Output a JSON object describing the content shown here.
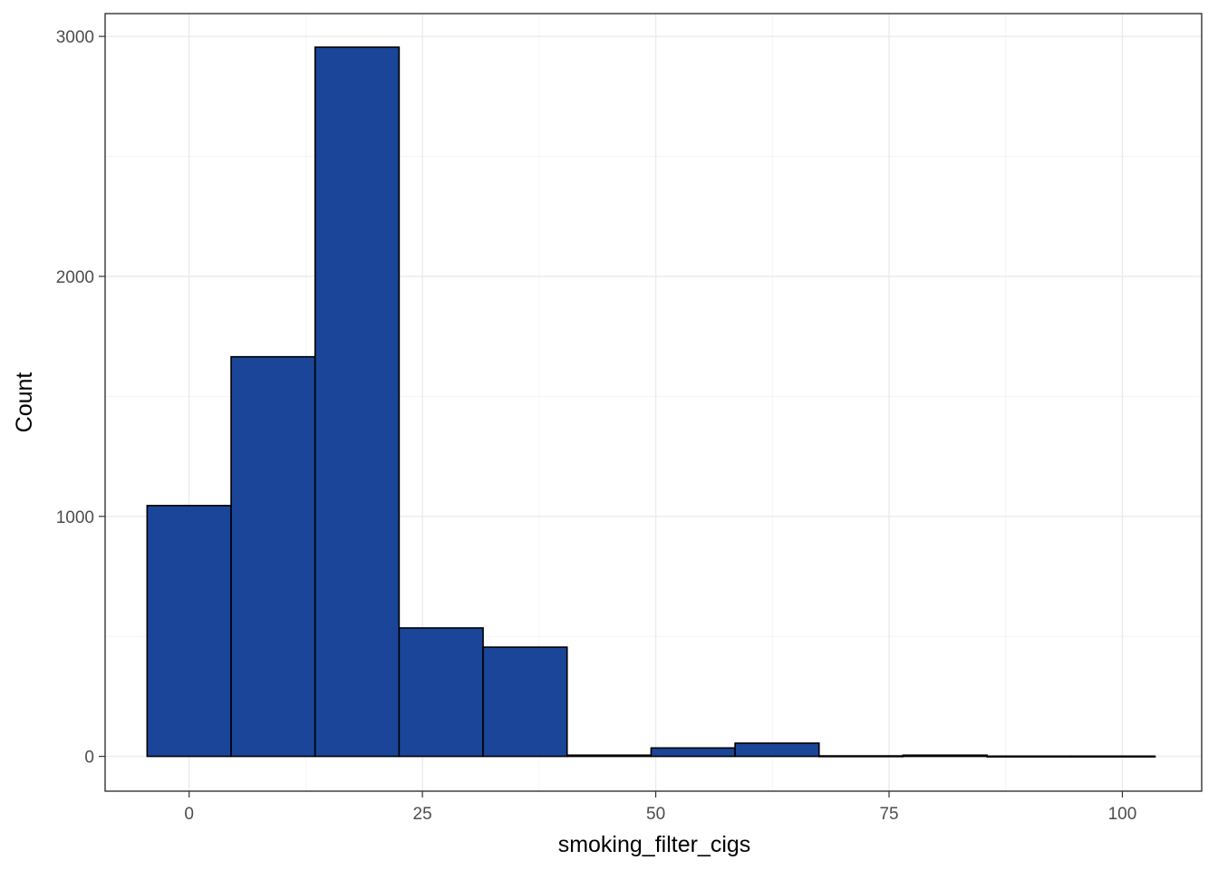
{
  "chart_data": {
    "type": "bar",
    "subtype": "histogram",
    "xlabel": "smoking_filter_cigs",
    "ylabel": "Count",
    "xlim": [
      -9,
      108.5
    ],
    "ylim": [
      -145,
      3095
    ],
    "x_ticks": [
      0,
      25,
      50,
      75,
      100
    ],
    "y_ticks": [
      0,
      1000,
      2000,
      3000
    ],
    "x_minor_ticks": [
      -12.5,
      12.5,
      37.5,
      62.5,
      87.5
    ],
    "y_minor_ticks": [
      500,
      1500,
      2500
    ],
    "bins": [
      {
        "x0": -4.5,
        "x1": 4.5,
        "count": 1045
      },
      {
        "x0": 4.5,
        "x1": 13.5,
        "count": 1665
      },
      {
        "x0": 13.5,
        "x1": 22.5,
        "count": 2955
      },
      {
        "x0": 22.5,
        "x1": 31.5,
        "count": 535
      },
      {
        "x0": 31.5,
        "x1": 40.5,
        "count": 455
      },
      {
        "x0": 40.5,
        "x1": 49.5,
        "count": 5
      },
      {
        "x0": 49.5,
        "x1": 58.5,
        "count": 35
      },
      {
        "x0": 58.5,
        "x1": 67.5,
        "count": 55
      },
      {
        "x0": 67.5,
        "x1": 76.5,
        "count": 2
      },
      {
        "x0": 76.5,
        "x1": 85.5,
        "count": 5
      },
      {
        "x0": 85.5,
        "x1": 94.5,
        "count": 1
      },
      {
        "x0": 94.5,
        "x1": 103.5,
        "count": 1
      }
    ],
    "bar_color": "#1a4599",
    "bar_outline": "#000000",
    "grid": true,
    "legend": "none"
  }
}
